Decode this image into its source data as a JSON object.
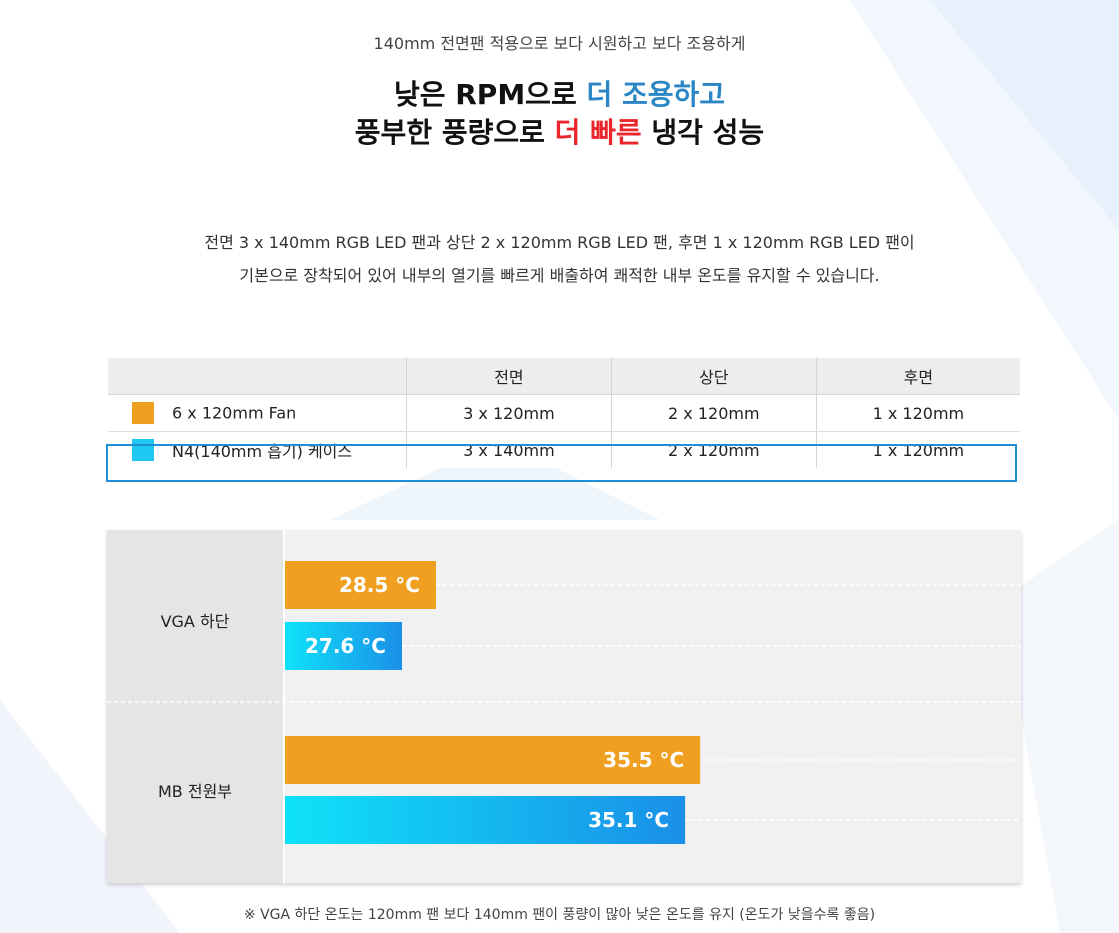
{
  "subtitle": "140mm 전면팬 적용으로 보다 시원하고 보다 조용하게",
  "headline": {
    "line1_a": "낮은 RPM으로 ",
    "line1_b": "더 조용하고",
    "line2_a": "풍부한 풍량으로 ",
    "line2_b": "더 빠른",
    "line2_c": " 냉각 성능"
  },
  "description": {
    "line1": "전면 3 x 140mm RGB LED 팬과 상단 2 x 120mm RGB LED 팬, 후면 1 x 120mm RGB LED 팬이",
    "line2": "기본으로 장착되어 있어 내부의 열기를 빠르게 배출하여 쾌적한 내부 온도를 유지할 수 있습니다."
  },
  "table": {
    "headers": [
      "",
      "전면",
      "상단",
      "후면"
    ],
    "rows": [
      {
        "color": "#f0a021",
        "label": "6 x 120mm Fan",
        "values": [
          "3 x 120mm",
          "2 x 120mm",
          "1 x 120mm"
        ]
      },
      {
        "color": "#1fc9f1",
        "label": "N4(140mm 흡기) 케이스",
        "values": [
          "3 x 140mm",
          "2 x 120mm",
          "1 x 120mm"
        ]
      }
    ]
  },
  "chart_data": {
    "type": "bar",
    "orientation": "horizontal",
    "categories": [
      "VGA 하단",
      "MB 전원부"
    ],
    "series": [
      {
        "name": "6 x 120mm Fan",
        "values": [
          28.5,
          35.5
        ],
        "color": "#f0a021"
      },
      {
        "name": "N4(140mm 흡기) 케이스",
        "values": [
          27.6,
          35.1
        ],
        "color": "#1fc9f1"
      }
    ],
    "value_labels": [
      [
        "28.5 °C",
        "35.5 °C"
      ],
      [
        "27.6 °C",
        "35.1 °C"
      ]
    ],
    "unit": "°C",
    "xlim": [
      24.5,
      44
    ],
    "grid": true
  },
  "footnote": "※ VGA 하단 온도는 120mm 팬 보다 140mm 팬이 풍량이 많아 낮은 온도를 유지 (온도가 낮을수록 좋음)"
}
